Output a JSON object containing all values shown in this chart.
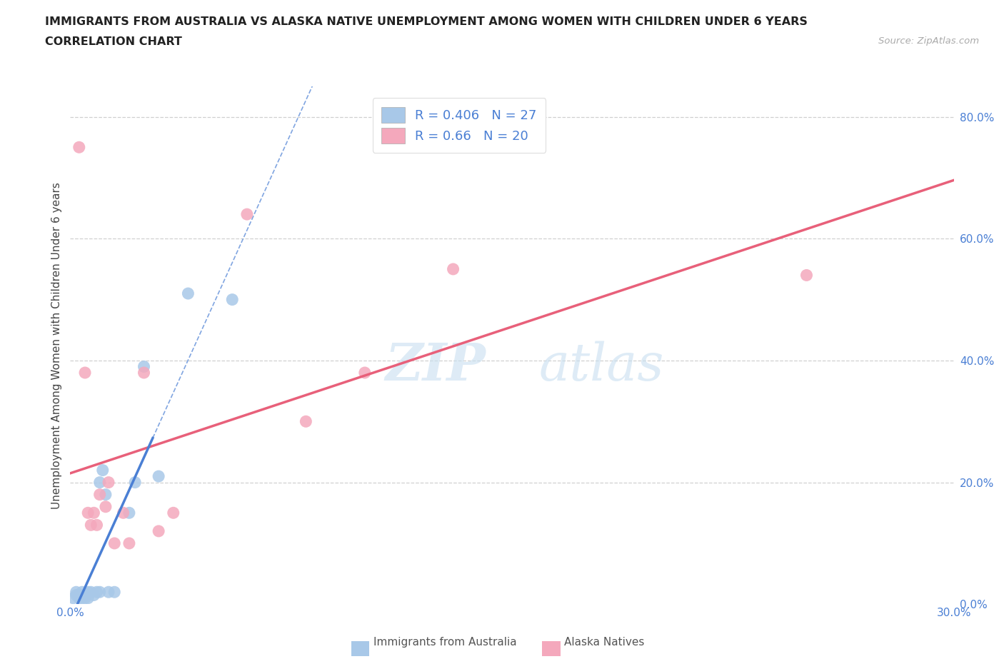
{
  "title_line1": "IMMIGRANTS FROM AUSTRALIA VS ALASKA NATIVE UNEMPLOYMENT AMONG WOMEN WITH CHILDREN UNDER 6 YEARS",
  "title_line2": "CORRELATION CHART",
  "source": "Source: ZipAtlas.com",
  "ylabel": "Unemployment Among Women with Children Under 6 years",
  "xlim": [
    0.0,
    0.3
  ],
  "ylim": [
    0.0,
    0.85
  ],
  "x_ticks": [
    0.0,
    0.05,
    0.1,
    0.15,
    0.2,
    0.25,
    0.3
  ],
  "y_ticks_right": [
    0.0,
    0.2,
    0.4,
    0.6,
    0.8
  ],
  "australia_color": "#a8c8e8",
  "alaska_color": "#f4a8bc",
  "australia_line_color": "#4a7fd4",
  "alaska_line_color": "#e8607a",
  "australia_R": 0.406,
  "australia_N": 27,
  "alaska_R": 0.66,
  "alaska_N": 20,
  "legend_R_color": "#4a7fd4",
  "watermark_zip_color": "#c8dff0",
  "watermark_atlas_color": "#c8dff0",
  "background_color": "#ffffff",
  "au_x": [
    0.001,
    0.002,
    0.002,
    0.003,
    0.003,
    0.004,
    0.004,
    0.004,
    0.005,
    0.005,
    0.006,
    0.006,
    0.007,
    0.008,
    0.009,
    0.01,
    0.01,
    0.011,
    0.012,
    0.013,
    0.015,
    0.02,
    0.022,
    0.025,
    0.03,
    0.04,
    0.055
  ],
  "au_y": [
    0.01,
    0.015,
    0.02,
    0.01,
    0.015,
    0.01,
    0.015,
    0.02,
    0.01,
    0.015,
    0.01,
    0.02,
    0.02,
    0.015,
    0.02,
    0.02,
    0.2,
    0.22,
    0.18,
    0.02,
    0.02,
    0.15,
    0.2,
    0.39,
    0.21,
    0.51,
    0.5
  ],
  "ak_x": [
    0.003,
    0.005,
    0.006,
    0.007,
    0.008,
    0.009,
    0.01,
    0.012,
    0.013,
    0.015,
    0.018,
    0.02,
    0.025,
    0.03,
    0.035,
    0.06,
    0.08,
    0.1,
    0.13,
    0.25
  ],
  "ak_y": [
    0.75,
    0.38,
    0.15,
    0.13,
    0.15,
    0.13,
    0.18,
    0.16,
    0.2,
    0.1,
    0.15,
    0.1,
    0.38,
    0.12,
    0.15,
    0.64,
    0.3,
    0.38,
    0.55,
    0.54
  ]
}
